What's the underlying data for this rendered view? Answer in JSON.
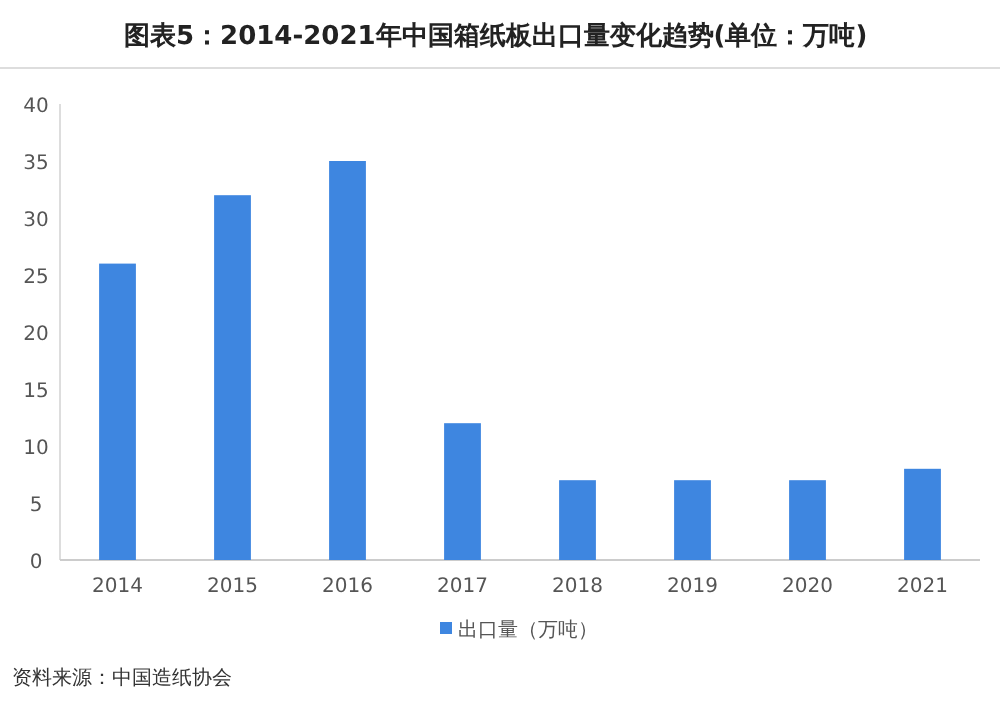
{
  "chart_data": {
    "type": "bar",
    "title": "图表5：2014-2021年中国箱纸板出口量变化趋势(单位：万吨)",
    "categories": [
      "2014",
      "2015",
      "2016",
      "2017",
      "2018",
      "2019",
      "2020",
      "2021"
    ],
    "series": [
      {
        "name": "出口量（万吨）",
        "color": "#3e86e0",
        "values": [
          26,
          32,
          35,
          12,
          7,
          7,
          7,
          8
        ]
      }
    ],
    "ylim": [
      0,
      40
    ],
    "yticks": [
      0,
      5,
      10,
      15,
      20,
      25,
      30,
      35,
      40
    ],
    "legend": "bottom",
    "annotations": [
      "资料来源：中国造纸协会"
    ]
  }
}
